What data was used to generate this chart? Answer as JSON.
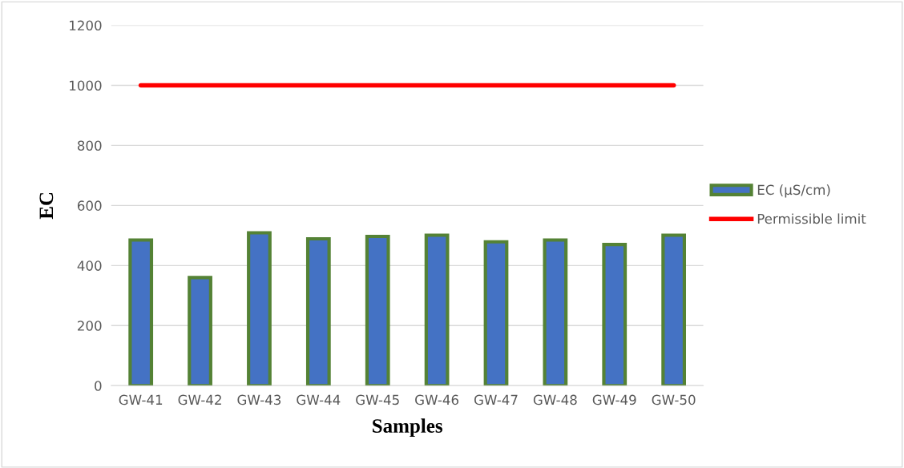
{
  "chart_data": {
    "type": "bar",
    "xlabel": "Samples",
    "ylabel": "EC",
    "categories": [
      "GW-41",
      "GW-42",
      "GW-43",
      "GW-44",
      "GW-45",
      "GW-46",
      "GW-47",
      "GW-48",
      "GW-49",
      "GW-50"
    ],
    "series": [
      {
        "name": "EC (µS/cm)",
        "color": "#4472c4",
        "values": [
          485,
          360,
          509,
          489,
          497,
          501,
          479,
          485,
          470,
          501
        ]
      },
      {
        "name": "Permissible limit",
        "type": "line",
        "color": "#ff0000",
        "values": [
          1000,
          1000,
          1000,
          1000,
          1000,
          1000,
          1000,
          1000,
          1000,
          1000
        ]
      }
    ],
    "ylim": [
      0,
      1200
    ],
    "yticks": [
      0,
      200,
      400,
      600,
      800,
      1000,
      1200
    ],
    "grid": "y",
    "legend": "right"
  }
}
